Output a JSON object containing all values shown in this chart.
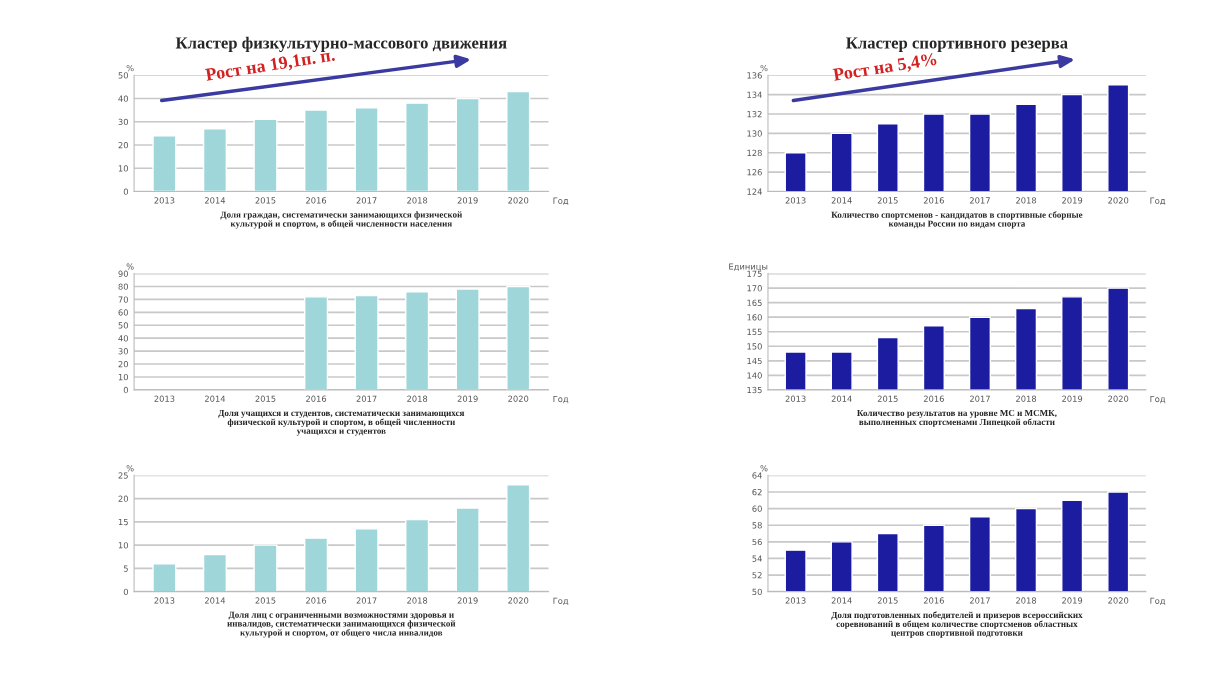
{
  "chart_data": [
    {
      "type": "bar",
      "title": "Кластер физкультурно-массового движения",
      "subtitle": "Доля граждан, систематически занимающихся физической\nкультурой и спортом, в общей численности населения",
      "xlabel": "Год",
      "ylabel": "%",
      "annotations": [
        "Рост на 19,1п. п."
      ],
      "categories": [
        "2013",
        "2014",
        "2015",
        "2016",
        "2017",
        "2018",
        "2019",
        "2020"
      ],
      "values": [
        24,
        27,
        31,
        35,
        36,
        38,
        40,
        43
      ],
      "color": "#9fd6da",
      "ylim": [
        0,
        50
      ],
      "yticks": [
        0,
        10,
        20,
        30,
        40,
        50
      ],
      "grid": "y"
    },
    {
      "type": "bar",
      "title": "Кластер спортивного резерва",
      "subtitle": "Количество спортсменов - кандидатов в спортивные сборные\nкоманды России по видам спорта",
      "xlabel": "Год",
      "ylabel": "%",
      "annotations": [
        "Рост на 5,4%"
      ],
      "categories": [
        "2013",
        "2014",
        "2015",
        "2016",
        "2017",
        "2018",
        "2019",
        "2020"
      ],
      "values": [
        128,
        130,
        131,
        132,
        132,
        133,
        134,
        135
      ],
      "color": "#1c1ca0",
      "ylim": [
        124,
        136
      ],
      "yticks": [
        124,
        126,
        128,
        130,
        132,
        134,
        136
      ],
      "grid": "y"
    },
    {
      "type": "bar",
      "subtitle": "Доля учащихся и студентов, систематически занимающихся\nфизической культурой и спортом, в общей численности\nучащихся и студентов",
      "xlabel": "Год",
      "ylabel": "%",
      "categories": [
        "2013",
        "2014",
        "2015",
        "2016",
        "2017",
        "2018",
        "2019",
        "2020"
      ],
      "values": [
        null,
        null,
        null,
        72,
        73,
        76,
        78,
        80
      ],
      "color": "#9fd6da",
      "ylim": [
        0,
        90
      ],
      "yticks": [
        0,
        10,
        20,
        30,
        40,
        50,
        60,
        70,
        80,
        90
      ],
      "grid": "y"
    },
    {
      "type": "bar",
      "subtitle": "Количество результатов на уровне МС и МСМК,\nвыполненных спортсменами Липецкой области",
      "xlabel": "Год",
      "ylabel": "Единицы",
      "categories": [
        "2013",
        "2014",
        "2015",
        "2016",
        "2017",
        "2018",
        "2019",
        "2020"
      ],
      "values": [
        148,
        148,
        153,
        157,
        160,
        163,
        167,
        170
      ],
      "color": "#1c1ca0",
      "ylim": [
        135,
        175
      ],
      "yticks": [
        135,
        140,
        145,
        150,
        155,
        160,
        165,
        170,
        175
      ],
      "grid": "y"
    },
    {
      "type": "bar",
      "subtitle": "Доля лиц с ограниченными возможностями здоровья и\nинвалидов, систематически занимающихся физической\nкультурой и спортом, от общего числа инвалидов",
      "xlabel": "Год",
      "ylabel": "%",
      "categories": [
        "2013",
        "2014",
        "2015",
        "2016",
        "2017",
        "2018",
        "2019",
        "2020"
      ],
      "values": [
        6,
        8,
        10,
        11.5,
        13.5,
        15.5,
        18,
        23
      ],
      "color": "#9fd6da",
      "ylim": [
        0,
        25
      ],
      "yticks": [
        0,
        5,
        10,
        15,
        20,
        25
      ],
      "grid": "y"
    },
    {
      "type": "bar",
      "subtitle": "Доля подготовленных победителей и призеров всероссийских\nсоревнований в общем количестве спортсменов областных\nцентров спортивной подготовки",
      "xlabel": "Год",
      "ylabel": "%",
      "categories": [
        "2013",
        "2014",
        "2015",
        "2016",
        "2017",
        "2018",
        "2019",
        "2020"
      ],
      "values": [
        55,
        56,
        57,
        58,
        59,
        60,
        61,
        62
      ],
      "color": "#1c1ca0",
      "ylim": [
        50,
        64
      ],
      "yticks": [
        50,
        52,
        54,
        56,
        58,
        60,
        62,
        64
      ],
      "grid": "y"
    }
  ]
}
